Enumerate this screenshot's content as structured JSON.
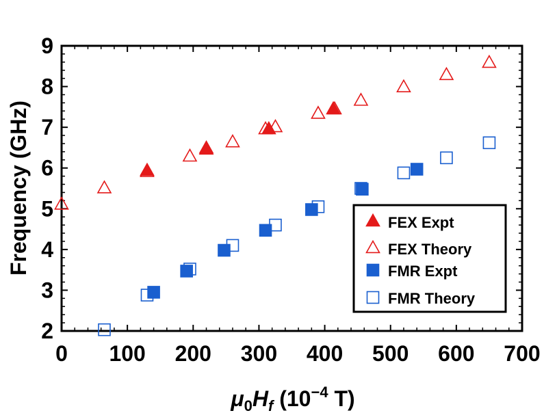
{
  "chart_data": {
    "type": "scatter",
    "title": "",
    "xlabel_parts": {
      "mu": "μ",
      "zero": "0",
      "H": "H",
      "f": "f",
      "paren_open": " (10",
      "exponent": "−4",
      "paren_close": " T)"
    },
    "ylabel": "Frequency (GHz)",
    "xlim": [
      0,
      700
    ],
    "ylim": [
      2,
      9
    ],
    "xticks": [
      0,
      100,
      200,
      300,
      400,
      500,
      600,
      700
    ],
    "yticks": [
      2,
      3,
      4,
      5,
      6,
      7,
      8,
      9
    ],
    "xtick_labels": [
      "0",
      "100",
      "200",
      "300",
      "400",
      "500",
      "600",
      "700"
    ],
    "ytick_labels": [
      "2",
      "3",
      "4",
      "5",
      "6",
      "7",
      "8",
      "9"
    ],
    "legend_position": "bottom-right",
    "series": [
      {
        "name": "FEX Expt",
        "marker": "triangle",
        "filled": true,
        "color": "#e41a1a",
        "x": [
          130,
          220,
          315,
          413
        ],
        "y": [
          5.93,
          6.45,
          6.95,
          7.44
        ]
      },
      {
        "name": "FEX Theory",
        "marker": "triangle",
        "filled": false,
        "color": "#e41a1a",
        "x": [
          0,
          65,
          130,
          195,
          220,
          260,
          310,
          325,
          390,
          415,
          455,
          520,
          585,
          650
        ],
        "y": [
          5.1,
          5.5,
          5.9,
          6.28,
          6.48,
          6.63,
          6.95,
          7.0,
          7.33,
          7.44,
          7.65,
          7.98,
          8.28,
          8.58
        ]
      },
      {
        "name": "FMR Expt",
        "marker": "square",
        "filled": true,
        "color": "#1a5fcf",
        "x": [
          140,
          190,
          247,
          310,
          380,
          457,
          540
        ],
        "y": [
          2.95,
          3.47,
          3.98,
          4.47,
          4.98,
          5.48,
          5.97
        ]
      },
      {
        "name": "FMR Theory",
        "marker": "square",
        "filled": false,
        "color": "#1a5fcf",
        "x": [
          65,
          130,
          195,
          260,
          325,
          390,
          455,
          520,
          585,
          650
        ],
        "y": [
          2.03,
          2.88,
          3.52,
          4.1,
          4.6,
          5.05,
          5.5,
          5.88,
          6.25,
          6.62
        ]
      }
    ]
  }
}
